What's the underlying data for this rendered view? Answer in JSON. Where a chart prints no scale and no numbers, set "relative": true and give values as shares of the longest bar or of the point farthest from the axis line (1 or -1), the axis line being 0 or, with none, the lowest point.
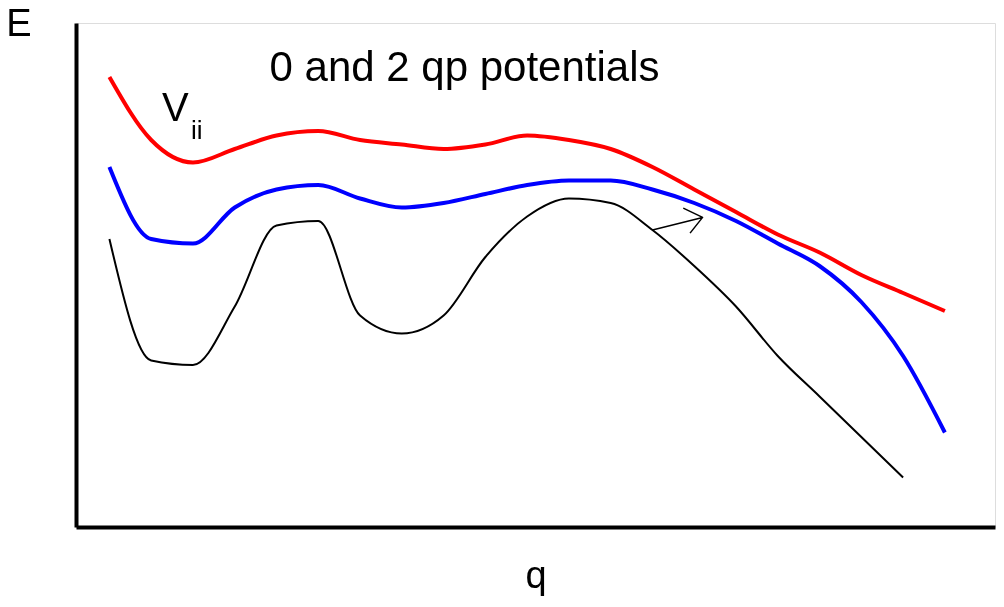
{
  "chart_data": {
    "type": "line",
    "relative": true,
    "title": "0 and 2 qp potentials",
    "xlabel": "q",
    "ylabel": "E",
    "grid": false,
    "legend": false,
    "categories": [
      null,
      null,
      null,
      null,
      null,
      null,
      null,
      null,
      null,
      null,
      null,
      null,
      null,
      null,
      null,
      null,
      null,
      null,
      null,
      null,
      null
    ],
    "series": [
      {
        "color": "#ff0000",
        "values": [
          1.0,
          0.86,
          0.81,
          0.84,
          0.87,
          0.88,
          0.86,
          0.85,
          0.84,
          0.85,
          0.87,
          0.86,
          0.84,
          0.8,
          0.75,
          0.7,
          0.65,
          0.61,
          0.56,
          0.52,
          0.48
        ]
      },
      {
        "color": "#0000ff",
        "values": [
          0.8,
          0.64,
          0.63,
          0.71,
          0.75,
          0.76,
          0.73,
          0.71,
          0.72,
          0.74,
          0.76,
          0.77,
          0.77,
          0.75,
          0.72,
          0.68,
          0.63,
          0.58,
          0.5,
          0.38,
          0.21
        ]
      },
      {
        "color": "#000000",
        "values": [
          0.64,
          0.37,
          0.36,
          0.49,
          0.67,
          0.68,
          0.47,
          0.43,
          0.47,
          0.6,
          0.69,
          0.73,
          0.72,
          0.66,
          0.58,
          0.49,
          0.38,
          0.29,
          0.2,
          0.11,
          null
        ]
      }
    ],
    "annotations": [
      "V$_{ii}$"
    ]
  }
}
